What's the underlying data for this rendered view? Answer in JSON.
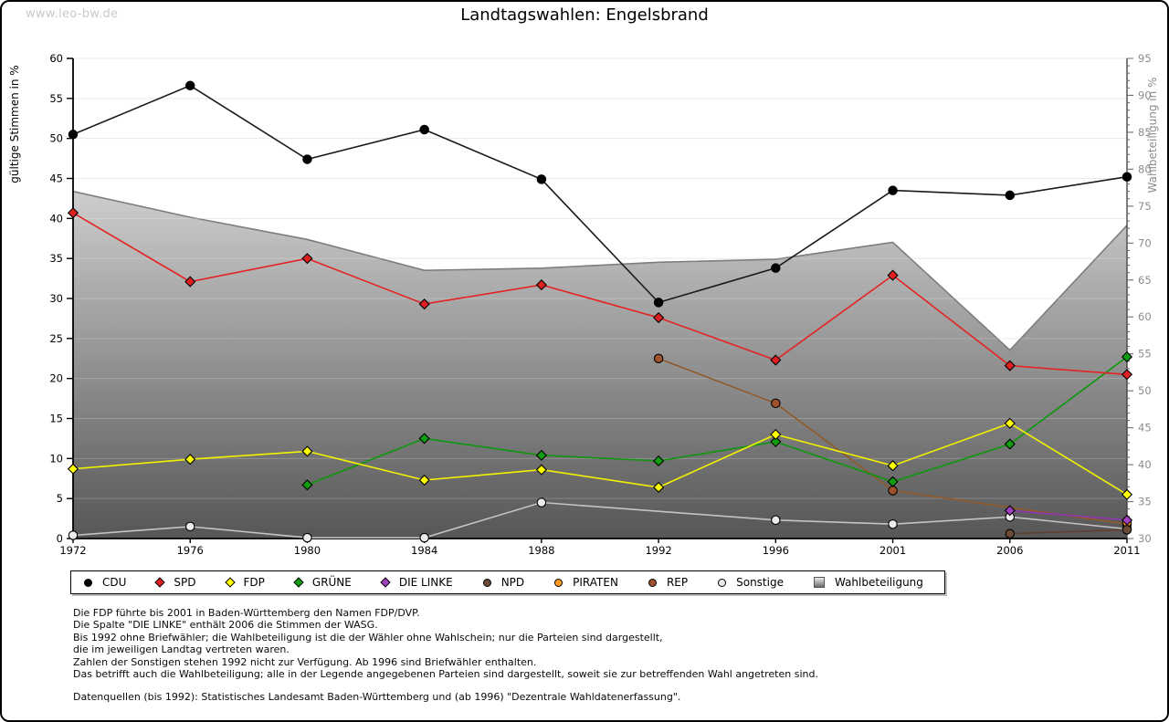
{
  "window": {
    "watermark": "www.leo-bw.de",
    "title": "Landtagswahlen: Engelsbrand"
  },
  "chart_data": {
    "type": "line",
    "title": "Landtagswahlen: Engelsbrand",
    "x": [
      1972,
      1976,
      1980,
      1984,
      1988,
      1992,
      1996,
      2001,
      2006,
      2011
    ],
    "left_axis": {
      "label": "gültige Stimmen in %",
      "min": 0,
      "max": 60,
      "tick_step": 5,
      "ticks": [
        0,
        5,
        10,
        15,
        20,
        25,
        30,
        35,
        40,
        45,
        50,
        55,
        60
      ]
    },
    "right_axis": {
      "label": "Wahlbeteiligung in %",
      "min": 30,
      "max": 95,
      "tick_step": 5,
      "ticks": [
        30,
        35,
        40,
        45,
        50,
        55,
        60,
        65,
        70,
        75,
        80,
        85,
        90,
        95
      ]
    },
    "grid": true,
    "legend_position": "bottom",
    "series": [
      {
        "name": "CDU",
        "color": "#000000",
        "line_color": "#1a1a1a",
        "marker": "circle",
        "values": [
          50.5,
          56.6,
          47.4,
          51.1,
          44.9,
          29.5,
          33.8,
          43.5,
          42.9,
          45.2
        ]
      },
      {
        "name": "SPD",
        "color": "#e02020",
        "line_color": "#e52222",
        "marker": "diamond",
        "values": [
          40.7,
          32.1,
          35.0,
          29.3,
          31.7,
          27.6,
          22.3,
          32.9,
          21.6,
          20.5
        ]
      },
      {
        "name": "FDP",
        "color": "#ffff00",
        "line_color": "#f2f200",
        "marker": "diamond",
        "values": [
          8.7,
          9.9,
          10.9,
          7.3,
          8.6,
          6.4,
          13.0,
          9.1,
          14.4,
          5.5
        ]
      },
      {
        "name": "GRÜNE",
        "color": "#0f9e0f",
        "line_color": "#0c970c",
        "marker": "diamond",
        "values": [
          null,
          null,
          6.7,
          12.5,
          10.4,
          9.7,
          12.1,
          7.1,
          11.8,
          22.7
        ]
      },
      {
        "name": "DIE LINKE",
        "color": "#a040c0",
        "line_color": "#9136b1",
        "marker": "diamond",
        "values": [
          null,
          null,
          null,
          null,
          null,
          null,
          null,
          null,
          3.5,
          2.3
        ]
      },
      {
        "name": "NPD",
        "color": "#6b4a36",
        "line_color": "#5f4030",
        "marker": "circle",
        "values": [
          null,
          null,
          null,
          null,
          null,
          null,
          null,
          null,
          0.6,
          1.1
        ]
      },
      {
        "name": "PIRATEN",
        "color": "#ff9c1e",
        "line_color": "#e88a10",
        "marker": "circle",
        "values": [
          null,
          null,
          null,
          null,
          null,
          null,
          null,
          null,
          null,
          2.0
        ]
      },
      {
        "name": "REP",
        "color": "#a0522d",
        "line_color": "#8f5a28",
        "marker": "circle",
        "values": [
          null,
          null,
          null,
          null,
          null,
          22.5,
          16.9,
          6.0,
          null,
          1.8
        ]
      },
      {
        "name": "Sonstige",
        "color": "#ececec",
        "line_color": "#c4c4c4",
        "marker": "circle",
        "values": [
          0.4,
          1.5,
          0.1,
          0.1,
          4.5,
          null,
          2.3,
          1.8,
          2.7,
          1.2
        ]
      }
    ],
    "turnout": {
      "name": "Wahlbeteiligung",
      "axis": "right",
      "edge_color": "#7d7d7d",
      "fill_top": "#fbfbfb",
      "fill_bottom": "#565656",
      "values": [
        77.0,
        73.5,
        70.5,
        66.3,
        66.6,
        67.4,
        67.8,
        70.1,
        55.5,
        72.4
      ]
    }
  },
  "legend": {
    "turnout_label": "Wahlbeteiligung"
  },
  "notes": {
    "lines": [
      "Die FDP führte bis 2001 in Baden-Württemberg den Namen FDP/DVP.",
      "Die Spalte \"DIE LINKE\" enthält 2006 die Stimmen der WASG.",
      "Bis 1992 ohne Briefwähler; die Wahlbeteiligung ist die der Wähler ohne Wahlschein; nur die Parteien sind dargestellt,",
      "die im jeweiligen Landtag vertreten waren.",
      "Zahlen der Sonstigen stehen 1992 nicht zur Verfügung. Ab 1996 sind Briefwähler enthalten.",
      "Das betrifft auch die Wahlbeteiligung; alle in der Legende angegebenen Parteien sind dargestellt, soweit sie zur betreffenden Wahl angetreten sind."
    ],
    "source": "Datenquellen (bis 1992): Statistisches Landesamt Baden-Württemberg und (ab 1996) \"Dezentrale Wahldatenerfassung\"."
  }
}
